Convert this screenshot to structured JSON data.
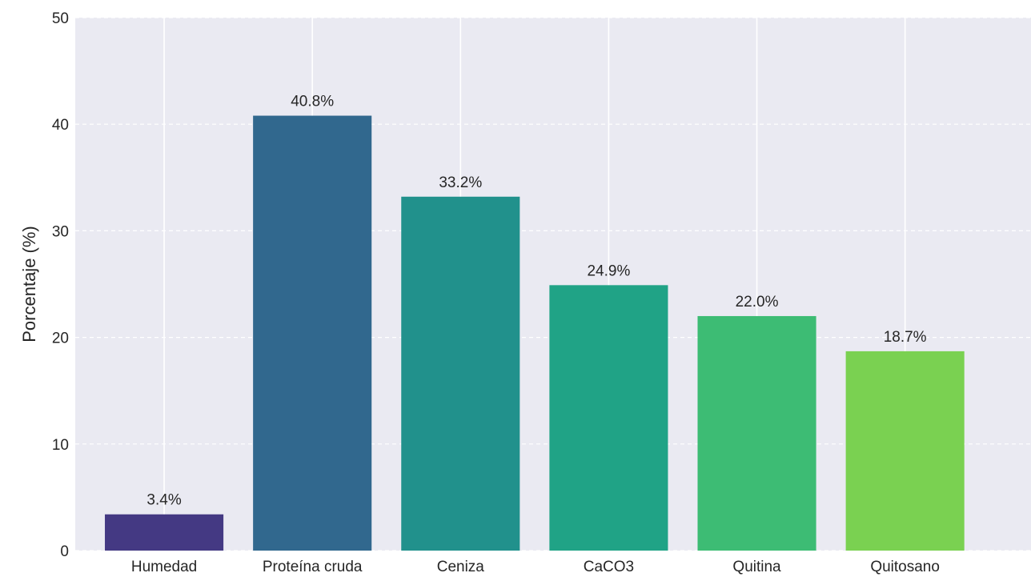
{
  "chart_data": {
    "type": "bar",
    "categories": [
      "Humedad",
      "Proteína cruda",
      "Ceniza",
      "CaCO3",
      "Quitina",
      "Quitosano"
    ],
    "values": [
      3.4,
      40.8,
      33.2,
      24.9,
      22.0,
      18.7
    ],
    "value_labels": [
      "3.4%",
      "40.8%",
      "33.2%",
      "24.9%",
      "22.0%",
      "18.7%"
    ],
    "colors": [
      "#443983",
      "#31688e",
      "#21918c",
      "#20a386",
      "#3dbc74",
      "#7ad151"
    ],
    "xlabel": "",
    "ylabel": "Porcentaje (%)",
    "ylim": [
      0,
      50
    ],
    "yticks": [
      0,
      10,
      20,
      30,
      40,
      50
    ],
    "grid": true,
    "background": "#eaeaf2",
    "grid_color": "#ffffff"
  }
}
